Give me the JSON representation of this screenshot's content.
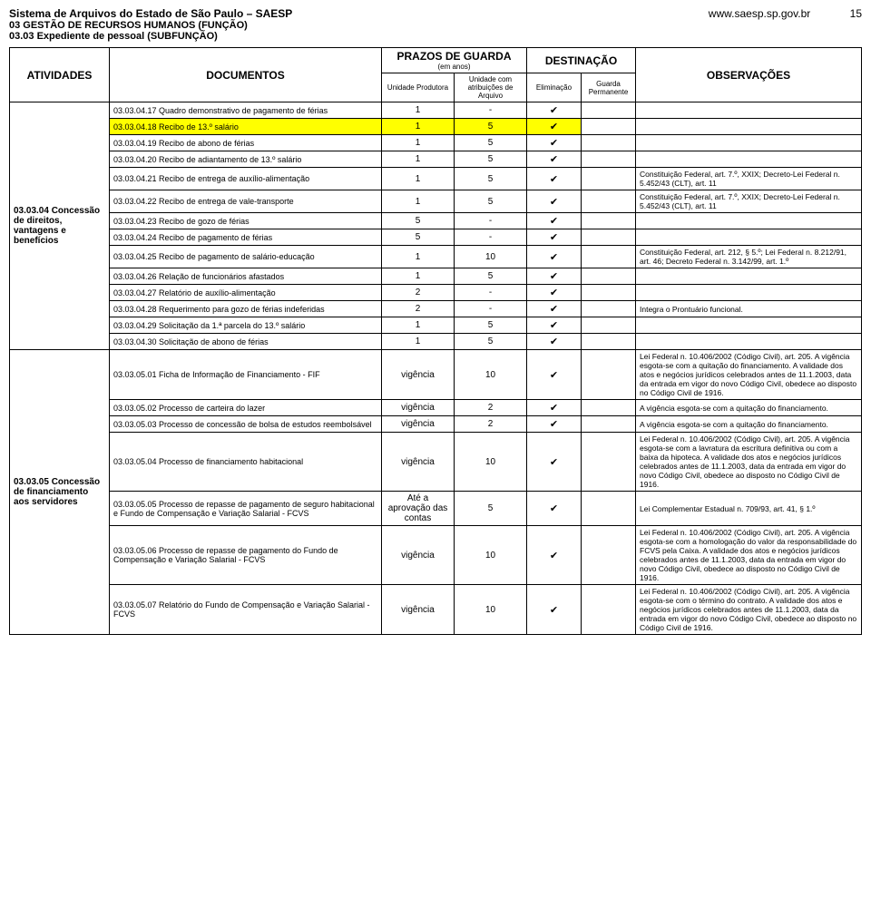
{
  "header": {
    "left_title": "Sistema de Arquivos do Estado de São Paulo – SAESP",
    "right_url": "www.saesp.sp.gov.br",
    "page_number": "15",
    "sub1": "03 GESTÃO DE RECURSOS HUMANOS (FUNÇÃO)",
    "sub2": "03.03 Expediente de pessoal (SUBFUNÇÃO)"
  },
  "table_head": {
    "atividades": "ATIVIDADES",
    "documentos": "DOCUMENTOS",
    "prazos": "PRAZOS DE GUARDA",
    "prazos_sub": "(em anos)",
    "destinacao": "DESTINAÇÃO",
    "observacoes": "OBSERVAÇÕES",
    "unidade_produtora": "Unidade Produtora",
    "unidade_atrib": "Unidade com atribuições de Arquivo",
    "eliminacao": "Eliminação",
    "guarda_perm": "Guarda Permanente"
  },
  "groups": {
    "g1": "03.03.04 Concessão de direitos, vantagens e benefícios",
    "g2": "03.03.05 Concessão de financiamento aos servidores"
  },
  "rows": [
    {
      "doc": "03.03.04.17 Quadro demonstrativo de pagamento de férias",
      "up": "1",
      "ua": "-",
      "el": true,
      "gp": false,
      "obs": ""
    },
    {
      "doc": "03.03.04.18 Recibo de 13.º salário",
      "up": "1",
      "ua": "5",
      "el": true,
      "gp": false,
      "obs": "",
      "hl": true
    },
    {
      "doc": "03.03.04.19 Recibo de abono de férias",
      "up": "1",
      "ua": "5",
      "el": true,
      "gp": false,
      "obs": ""
    },
    {
      "doc": "03.03.04.20 Recibo de adiantamento de 13.º salário",
      "up": "1",
      "ua": "5",
      "el": true,
      "gp": false,
      "obs": ""
    },
    {
      "doc": "03.03.04.21 Recibo de entrega de auxílio-alimentação",
      "up": "1",
      "ua": "5",
      "el": true,
      "gp": false,
      "obs": "Constituição Federal, art. 7.º, XXIX; Decreto-Lei Federal n. 5.452/43 (CLT), art. 11"
    },
    {
      "doc": "03.03.04.22 Recibo de entrega de vale-transporte",
      "up": "1",
      "ua": "5",
      "el": true,
      "gp": false,
      "obs": "Constituição Federal, art. 7.º, XXIX; Decreto-Lei Federal n. 5.452/43 (CLT), art. 11"
    },
    {
      "doc": "03.03.04.23 Recibo de gozo de férias",
      "up": "5",
      "ua": "-",
      "el": true,
      "gp": false,
      "obs": ""
    },
    {
      "doc": "03.03.04.24 Recibo de pagamento de férias",
      "up": "5",
      "ua": "-",
      "el": true,
      "gp": false,
      "obs": ""
    },
    {
      "doc": "03.03.04.25 Recibo de pagamento de salário-educação",
      "up": "1",
      "ua": "10",
      "el": true,
      "gp": false,
      "obs": "Constituição Federal, art. 212, § 5.º; Lei Federal n. 8.212/91, art. 46; Decreto Federal n. 3.142/99, art. 1.º"
    },
    {
      "doc": "03.03.04.26 Relação de funcionários afastados",
      "up": "1",
      "ua": "5",
      "el": true,
      "gp": false,
      "obs": ""
    },
    {
      "doc": "03.03.04.27 Relatório de auxílio-alimentação",
      "up": "2",
      "ua": "-",
      "el": true,
      "gp": false,
      "obs": ""
    },
    {
      "doc": "03.03.04.28 Requerimento para gozo de férias indeferidas",
      "up": "2",
      "ua": "-",
      "el": true,
      "gp": false,
      "obs": "Integra o Prontuário funcional."
    },
    {
      "doc": "03.03.04.29 Solicitação da 1.ª parcela do 13.º salário",
      "up": "1",
      "ua": "5",
      "el": true,
      "gp": false,
      "obs": ""
    },
    {
      "doc": "03.03.04.30 Solicitação de abono de férias",
      "up": "1",
      "ua": "5",
      "el": true,
      "gp": false,
      "obs": ""
    },
    {
      "doc": "03.03.05.01 Ficha de Informação de Financiamento - FIF",
      "up": "vigência",
      "ua": "10",
      "el": true,
      "gp": false,
      "obs": "Lei Federal n. 10.406/2002 (Código Civil), art. 205. A vigência esgota-se com a quitação do financiamento. A validade dos atos e negócios jurídicos celebrados antes de 11.1.2003, data da entrada em vigor do novo Código Civil, obedece ao disposto no Código Civil de 1916."
    },
    {
      "doc": "03.03.05.02 Processo de carteira do lazer",
      "up": "vigência",
      "ua": "2",
      "el": true,
      "gp": false,
      "obs": "A vigência esgota-se com a quitação do financiamento."
    },
    {
      "doc": "03.03.05.03 Processo de concessão de bolsa de estudos reembolsável",
      "up": "vigência",
      "ua": "2",
      "el": true,
      "gp": false,
      "obs": "A vigência esgota-se com a quitação do financiamento."
    },
    {
      "doc": "03.03.05.04 Processo de financiamento habitacional",
      "up": "vigência",
      "ua": "10",
      "el": true,
      "gp": false,
      "obs": "Lei Federal n. 10.406/2002 (Código Civil), art. 205. A vigência esgota-se com a lavratura da escritura definitiva ou com a baixa da hipoteca. A validade dos atos e negócios jurídicos celebrados antes de 11.1.2003, data da entrada em vigor do novo Código Civil, obedece ao disposto no Código Civil de 1916."
    },
    {
      "doc": "03.03.05.05 Processo de repasse de pagamento de seguro habitacional e Fundo de Compensação e Variação Salarial - FCVS",
      "up": "Até a aprovação das contas",
      "ua": "5",
      "el": true,
      "gp": false,
      "obs": "Lei Complementar Estadual n. 709/93, art. 41, § 1.º"
    },
    {
      "doc": "03.03.05.06 Processo de repasse de pagamento do Fundo de Compensação e Variação Salarial - FCVS",
      "up": "vigência",
      "ua": "10",
      "el": true,
      "gp": false,
      "obs": "Lei Federal n. 10.406/2002 (Código Civil), art. 205. A vigência esgota-se com a homologação do valor da responsabilidade do FCVS pela Caixa. A validade dos atos e negócios jurídicos celebrados antes de 11.1.2003, data da entrada em vigor do novo Código Civil, obedece ao disposto no Código Civil de 1916."
    },
    {
      "doc": "03.03.05.07 Relatório do Fundo de Compensação e Variação Salarial - FCVS",
      "up": "vigência",
      "ua": "10",
      "el": true,
      "gp": false,
      "obs": "Lei Federal n. 10.406/2002 (Código Civil), art. 205. A vigência esgota-se com o término do contrato. A validade dos atos e negócios jurídicos celebrados antes de 11.1.2003, data da entrada em vigor do novo Código Civil, obedece ao disposto no Código Civil de 1916."
    }
  ],
  "checkmark": "✔"
}
